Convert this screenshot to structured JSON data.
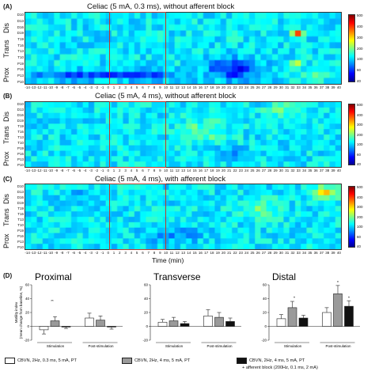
{
  "panels": {
    "A": {
      "letter": "(A)",
      "title": "Celiac (5 mA, 0.3 ms), without afferent block"
    },
    "B": {
      "letter": "(B)",
      "title": "Celiac (5 mA, 4 ms), without afferent block"
    },
    "C": {
      "letter": "(C)",
      "title": "Celiac (5 mA, 4 ms), with afferent block"
    },
    "D": {
      "letter": "(D)"
    }
  },
  "heatmap": {
    "region_labels": {
      "dis": "Dis",
      "trans": "Trans",
      "prox": "Prox"
    },
    "row_labels": [
      "D10",
      "D13",
      "D16",
      "D19",
      "T19",
      "T16",
      "T13",
      "T10",
      "P19",
      "P16",
      "P13",
      "P10"
    ],
    "x_ticks": [
      "-14",
      "-13",
      "-12",
      "-11",
      "-10",
      "-9",
      "-8",
      "-7",
      "-6",
      "-5",
      "-4",
      "-3",
      "-2",
      "-1",
      "0",
      "1",
      "2",
      "3",
      "4",
      "5",
      "6",
      "7",
      "8",
      "9",
      "10",
      "11",
      "12",
      "13",
      "14",
      "15",
      "16",
      "17",
      "18",
      "19",
      "20",
      "21",
      "22",
      "23",
      "24",
      "25",
      "26",
      "27",
      "28",
      "29",
      "30",
      "31",
      "32",
      "33",
      "34",
      "35",
      "36",
      "37",
      "38",
      "39",
      "40"
    ],
    "x_axis_title": "Time (min)",
    "stim_window": [
      1,
      10
    ],
    "colorbar_ticks": [
      "500",
      "400",
      "300",
      "200",
      "100",
      "60",
      "40"
    ],
    "colorbar_ticks_b": [
      "500",
      "400",
      "300",
      "200",
      "100",
      "60",
      "40"
    ],
    "colors": {
      "roi": "#c0392b"
    }
  },
  "chart_data": [
    {
      "type": "bar",
      "title": "Proximal",
      "ylabel": "Motility index\n(mean change from baseline, %)",
      "ylim": [
        -20,
        60
      ],
      "yticks": [
        "60",
        "40",
        "20",
        "0",
        "-20"
      ],
      "categories": [
        "Stimulation",
        "Post-stimulation"
      ],
      "series": [
        {
          "name": "CBVN, 2Hz, 0.3 ms, 5 mA, PT",
          "color": "#ffffff",
          "values": [
            -5,
            12
          ],
          "errors": [
            6,
            7
          ]
        },
        {
          "name": "CBVN, 2Hz, 4 ms, 5 mA, PT",
          "color": "#9a9a9a",
          "values": [
            8,
            9
          ],
          "errors": [
            6,
            6
          ]
        },
        {
          "name": "CBVN, 2Hz, 4 ms, 5 mA, PT + afferent block (200Hz, 0.1 ms, 2 mA)",
          "color": "#111111",
          "values": [
            -1,
            -1
          ],
          "errors": [
            2,
            3
          ]
        }
      ],
      "annotations": [
        "**"
      ]
    },
    {
      "type": "bar",
      "title": "Transverse",
      "ylim": [
        -20,
        60
      ],
      "yticks": [
        "60",
        "40",
        "20",
        "0",
        "-20"
      ],
      "categories": [
        "Stimulation",
        "Post-stimulation"
      ],
      "series": [
        {
          "name": "CBVN, 2Hz, 0.3 ms, 5 mA, PT",
          "color": "#ffffff",
          "values": [
            6,
            15
          ],
          "errors": [
            4,
            9
          ]
        },
        {
          "name": "CBVN, 2Hz, 4 ms, 5 mA, PT",
          "color": "#9a9a9a",
          "values": [
            8,
            13
          ],
          "errors": [
            5,
            7
          ]
        },
        {
          "name": "CBVN, 2Hz, 4 ms, 5 mA, PT + afferent block (200Hz, 0.1 ms, 2 mA)",
          "color": "#111111",
          "values": [
            4,
            7
          ],
          "errors": [
            3,
            5
          ]
        }
      ]
    },
    {
      "type": "bar",
      "title": "Distal",
      "ylim": [
        -20,
        60
      ],
      "yticks": [
        "60",
        "40",
        "20",
        "0",
        "-20"
      ],
      "categories": [
        "Stimulation",
        "Post-stimulation"
      ],
      "series": [
        {
          "name": "CBVN, 2Hz, 0.3 ms, 5 mA, PT",
          "color": "#ffffff",
          "values": [
            11,
            20
          ],
          "errors": [
            6,
            7
          ]
        },
        {
          "name": "CBVN, 2Hz, 4 ms, 5 mA, PT",
          "color": "#9a9a9a",
          "values": [
            27,
            47
          ],
          "errors": [
            9,
            12
          ]
        },
        {
          "name": "CBVN, 2Hz, 4 ms, 5 mA, PT + afferent block (200Hz, 0.1 ms, 2 mA)",
          "color": "#111111",
          "values": [
            12,
            29
          ],
          "errors": [
            4,
            8
          ]
        }
      ],
      "annotations": [
        "*",
        "*",
        "*"
      ]
    }
  ],
  "axis_group_labels": {
    "stim": "Stimulation",
    "post": "Post-stimulation"
  },
  "legend": {
    "item1": "CBVN, 2Hz, 0.3 ms, 5 mA,  PT",
    "item2": "CBVN, 2Hz, 4 ms, 5 mA,  PT",
    "item3_line1": "CBVN, 2Hz, 4 ms, 5 mA,  PT",
    "item3_line2": "+ afferent block (200Hz, 0.1 ms, 2 mA)"
  }
}
